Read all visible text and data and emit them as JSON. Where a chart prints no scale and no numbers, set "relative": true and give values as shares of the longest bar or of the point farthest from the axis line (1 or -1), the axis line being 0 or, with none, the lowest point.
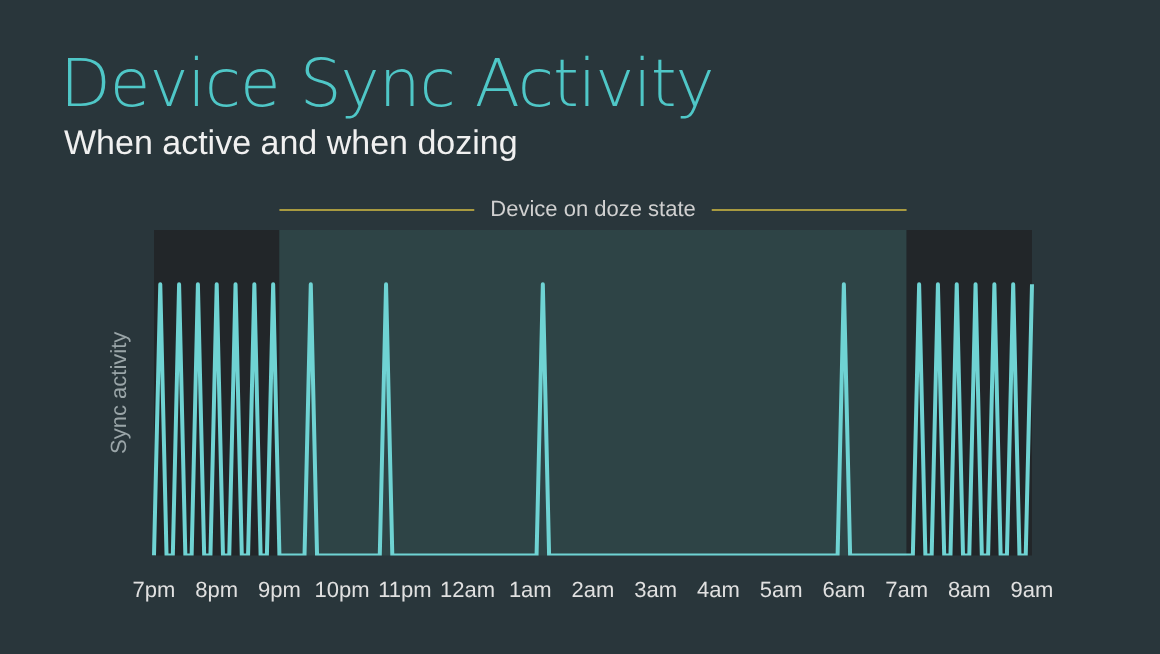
{
  "chart_data": {
    "type": "line",
    "title": "Device Sync Activity",
    "subtitle": "When active and when dozing",
    "ylabel": "Sync activity",
    "relative": true,
    "categories": [
      "7pm",
      null,
      null,
      null,
      null,
      null,
      null,
      null,
      null,
      null,
      "8pm",
      null,
      null,
      null,
      null,
      null,
      null,
      null,
      null,
      null,
      "9pm",
      null,
      null,
      null,
      null,
      null,
      null,
      null,
      null,
      null,
      "10pm",
      null,
      null,
      null,
      null,
      null,
      null,
      null,
      null,
      null,
      "11pm",
      null,
      null,
      null,
      null,
      null,
      null,
      null,
      null,
      null,
      "12am",
      null,
      null,
      null,
      null,
      null,
      null,
      null,
      null,
      null,
      "1am",
      null,
      null,
      null,
      null,
      null,
      null,
      null,
      null,
      null,
      "2am",
      null,
      null,
      null,
      null,
      null,
      null,
      null,
      null,
      null,
      "3am",
      null,
      null,
      null,
      null,
      null,
      null,
      null,
      null,
      null,
      "4am",
      null,
      null,
      null,
      null,
      null,
      null,
      null,
      null,
      null,
      "5am",
      null,
      null,
      null,
      null,
      null,
      null,
      null,
      null,
      null,
      "6am",
      null,
      null,
      null,
      null,
      null,
      null,
      null,
      null,
      null,
      "7am",
      null,
      null,
      null,
      null,
      null,
      null,
      null,
      null,
      null,
      "8am",
      null,
      null,
      null,
      null,
      null,
      null,
      null,
      null,
      null,
      "9am"
    ],
    "bands": [
      {
        "axis": "x",
        "from": "7pm",
        "to": "9pm",
        "color": "#222629"
      },
      {
        "axis": "x",
        "from": "9pm",
        "to": "7am",
        "color": "#2e4446",
        "label": "Device on doze state"
      },
      {
        "axis": "x",
        "from": "7am",
        "to": "9am",
        "color": "#222629"
      }
    ],
    "series": [
      {
        "color": "#6fd3d3",
        "values": [
          0,
          1,
          0,
          0,
          1,
          0,
          0,
          1,
          0,
          0,
          1,
          0,
          0,
          1,
          0,
          0,
          1,
          0,
          0,
          1,
          0,
          0,
          0,
          0,
          0,
          1,
          0,
          0,
          0,
          0,
          0,
          0,
          0,
          0,
          0,
          0,
          0,
          1,
          0,
          0,
          0,
          0,
          0,
          0,
          0,
          0,
          0,
          0,
          0,
          0,
          0,
          0,
          0,
          0,
          0,
          0,
          0,
          0,
          0,
          0,
          0,
          0,
          1,
          0,
          0,
          0,
          0,
          0,
          0,
          0,
          0,
          0,
          0,
          0,
          0,
          0,
          0,
          0,
          0,
          0,
          0,
          0,
          0,
          0,
          0,
          0,
          0,
          0,
          0,
          0,
          0,
          0,
          0,
          0,
          0,
          0,
          0,
          0,
          0,
          0,
          0,
          0,
          0,
          0,
          0,
          0,
          0,
          0,
          0,
          0,
          1,
          0,
          0,
          0,
          0,
          0,
          0,
          0,
          0,
          0,
          0,
          0,
          1,
          0,
          0,
          1,
          0,
          0,
          1,
          0,
          0,
          1,
          0,
          0,
          1,
          0,
          0,
          1,
          0,
          0,
          1
        ]
      }
    ]
  }
}
